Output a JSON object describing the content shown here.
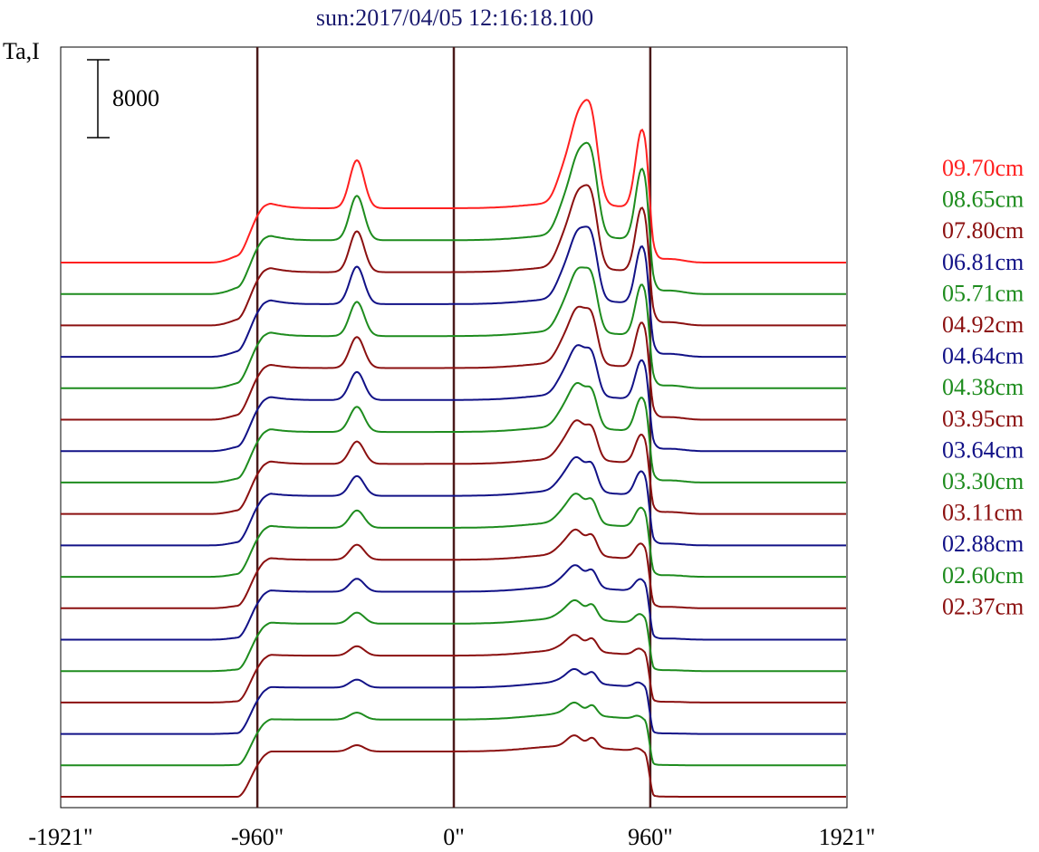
{
  "chart_data": {
    "type": "line",
    "title": "sun:2017/04/05 12:16:18.100",
    "ylabel": "Ta,I",
    "scale_bar_label": "8000",
    "x_tick_labels": [
      "-1921\"",
      "-960\"",
      "0\"",
      "960\"",
      "1921\""
    ],
    "x_ticks": [
      -1921,
      -960,
      0,
      960,
      1921
    ],
    "xlim": [
      -1921,
      1921
    ],
    "vertical_lines": [
      -960,
      0,
      960
    ],
    "grid": false,
    "legend_position": "right",
    "series": [
      {
        "name": "09.70cm",
        "color": "#ff2020"
      },
      {
        "name": "08.65cm",
        "color": "#1e8c1e"
      },
      {
        "name": "07.80cm",
        "color": "#8b1010"
      },
      {
        "name": "06.81cm",
        "color": "#121287"
      },
      {
        "name": "05.71cm",
        "color": "#1e8c1e"
      },
      {
        "name": "04.92cm",
        "color": "#8b1010"
      },
      {
        "name": "04.64cm",
        "color": "#121287"
      },
      {
        "name": "04.38cm",
        "color": "#1e8c1e"
      },
      {
        "name": "03.95cm",
        "color": "#8b1010"
      },
      {
        "name": "03.64cm",
        "color": "#121287"
      },
      {
        "name": "03.30cm",
        "color": "#1e8c1e"
      },
      {
        "name": "03.11cm",
        "color": "#8b1010"
      },
      {
        "name": "02.88cm",
        "color": "#121287"
      },
      {
        "name": "02.60cm",
        "color": "#1e8c1e"
      },
      {
        "name": "02.37cm",
        "color": "#8b1010"
      },
      {
        "name": "",
        "color": "#121287"
      },
      {
        "name": "",
        "color": "#1e8c1e"
      },
      {
        "name": "",
        "color": "#8b1010"
      }
    ]
  }
}
